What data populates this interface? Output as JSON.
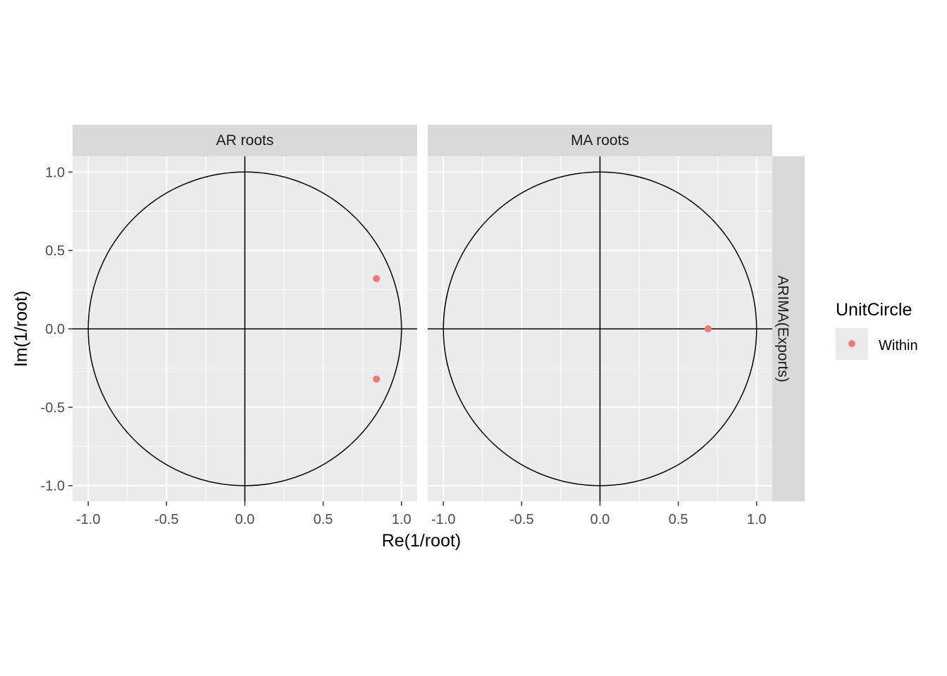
{
  "chart_data": {
    "type": "scatter",
    "xlabel": "Re(1/root)",
    "ylabel": "Im(1/root)",
    "xlim": [
      -1.1,
      1.1
    ],
    "ylim": [
      -1.1,
      1.1
    ],
    "x_ticks": [
      "-1.0",
      "-0.5",
      "0.0",
      "0.5",
      "1.0"
    ],
    "y_ticks": [
      "-1.0",
      "-0.5",
      "0.0",
      "0.5",
      "1.0"
    ],
    "tick_values": [
      -1,
      -0.5,
      0,
      0.5,
      1
    ],
    "grid": true,
    "unit_circle": true,
    "facet_row_label": "ARIMA(Exports)",
    "panels": [
      {
        "label": "AR roots",
        "points": [
          {
            "x": 0.84,
            "y": 0.32,
            "series": "Within"
          },
          {
            "x": 0.84,
            "y": -0.32,
            "series": "Within"
          }
        ]
      },
      {
        "label": "MA roots",
        "points": [
          {
            "x": 0.69,
            "y": 0.0,
            "series": "Within"
          }
        ]
      }
    ],
    "legend": {
      "title": "UnitCircle",
      "position": "right",
      "entries": [
        {
          "label": "Within",
          "color": "#f8766d"
        }
      ]
    },
    "colors": {
      "panel_background": "#ebebeb",
      "strip_background": "#d9d9d9",
      "grid": "#ffffff",
      "point": "#f8766d"
    }
  }
}
